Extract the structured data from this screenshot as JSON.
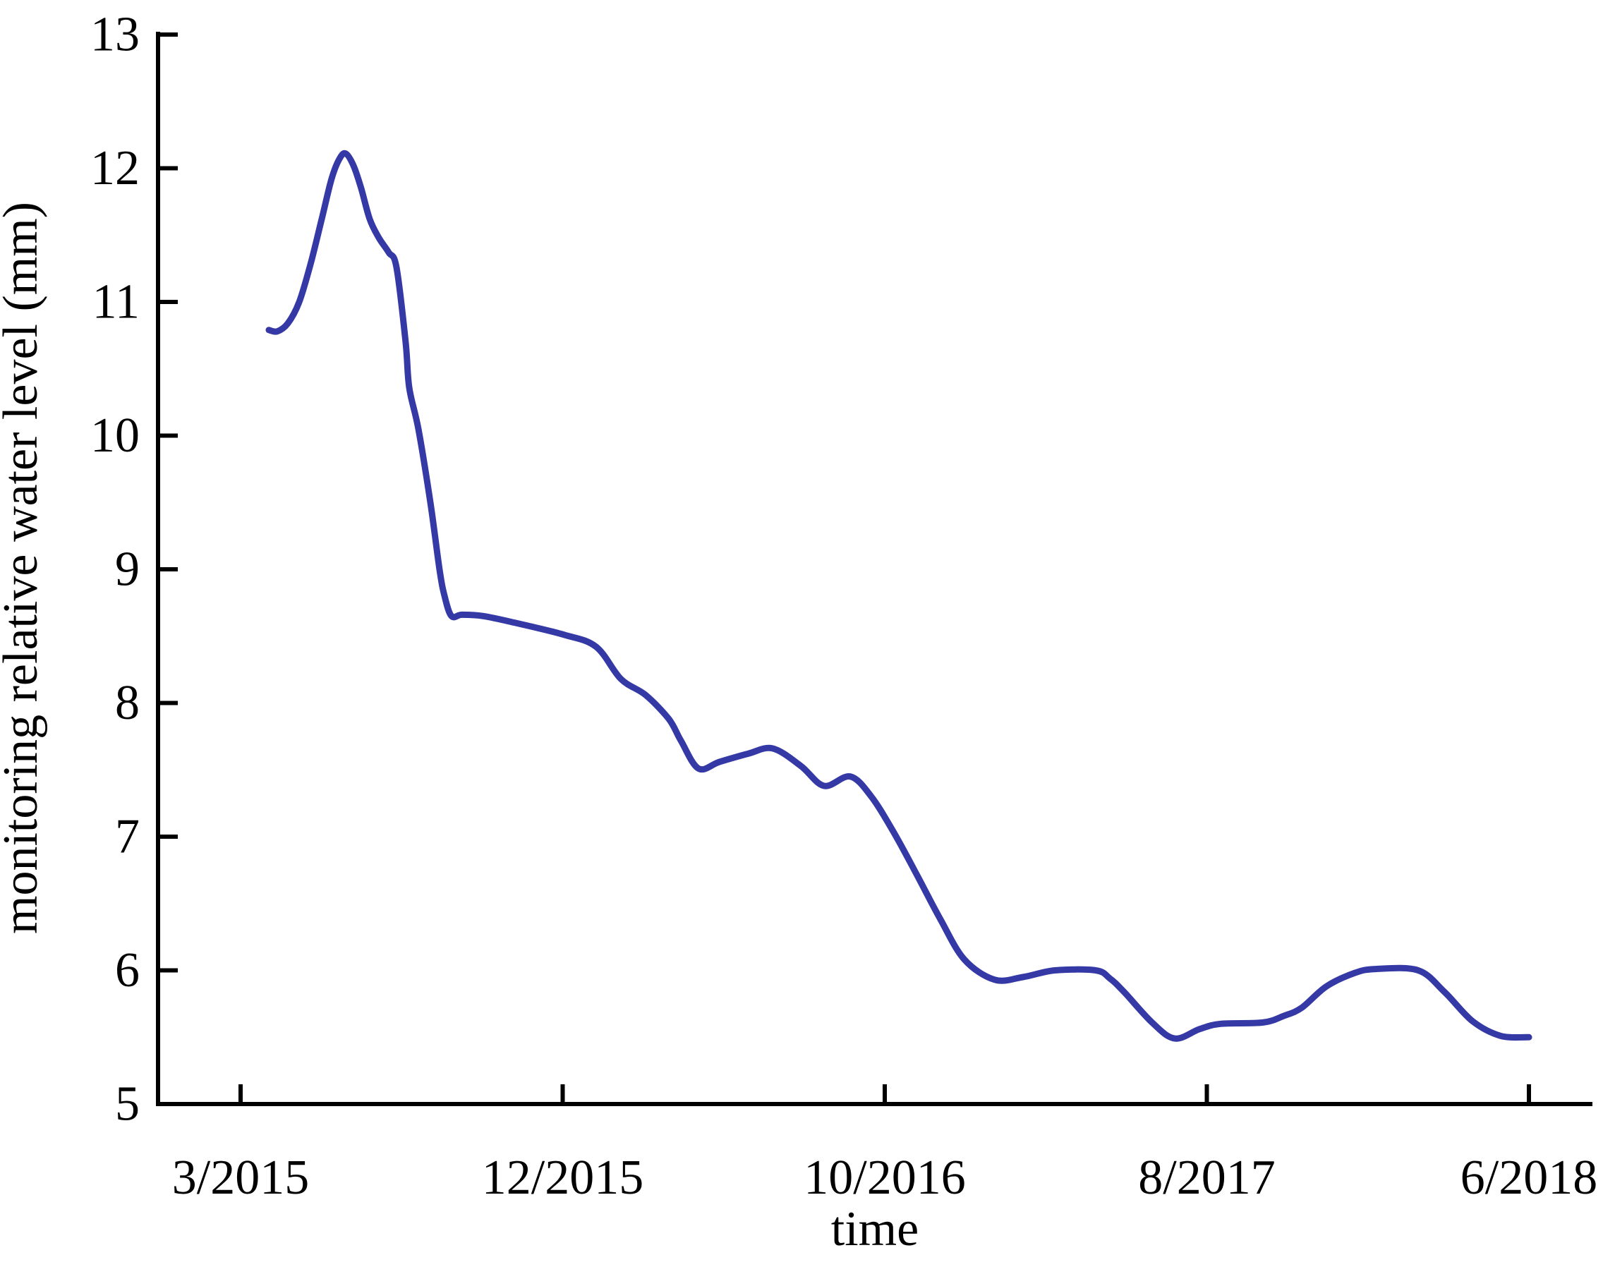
{
  "chart_data": {
    "type": "line",
    "title": "",
    "xlabel": "time",
    "ylabel": "monitoring relative water level (mm)",
    "x_tick_labels": [
      "3/2015",
      "12/2015",
      "10/2016",
      "8/2017",
      "6/2018"
    ],
    "x_tick_positions": [
      0,
      0.25,
      0.5,
      0.75,
      1
    ],
    "y_ticks": [
      13,
      12,
      11,
      10,
      9,
      8,
      7,
      6,
      5
    ],
    "ylim": [
      5,
      13
    ],
    "grid": false,
    "legend": "none",
    "line_color": "#3439a6",
    "axis_color": "#000000",
    "series": [
      {
        "name": "monitoring relative water level",
        "color": "#3439a6",
        "points": [
          [
            0.0219,
            10.79
          ],
          [
            0.0285,
            10.78
          ],
          [
            0.0367,
            10.84
          ],
          [
            0.0455,
            11.0
          ],
          [
            0.0542,
            11.28
          ],
          [
            0.063,
            11.62
          ],
          [
            0.0706,
            11.92
          ],
          [
            0.0767,
            12.07
          ],
          [
            0.0816,
            12.11
          ],
          [
            0.0876,
            12.02
          ],
          [
            0.0936,
            11.85
          ],
          [
            0.1002,
            11.62
          ],
          [
            0.1073,
            11.48
          ],
          [
            0.115,
            11.37
          ],
          [
            0.121,
            11.26
          ],
          [
            0.1281,
            10.7
          ],
          [
            0.1309,
            10.36
          ],
          [
            0.138,
            10.05
          ],
          [
            0.1473,
            9.5
          ],
          [
            0.1544,
            9.0
          ],
          [
            0.1583,
            8.8
          ],
          [
            0.1637,
            8.65
          ],
          [
            0.1719,
            8.66
          ],
          [
            0.1884,
            8.65
          ],
          [
            0.213,
            8.6
          ],
          [
            0.2513,
            8.51
          ],
          [
            0.276,
            8.42
          ],
          [
            0.2952,
            8.18
          ],
          [
            0.3143,
            8.06
          ],
          [
            0.3324,
            7.88
          ],
          [
            0.3417,
            7.72
          ],
          [
            0.3554,
            7.51
          ],
          [
            0.3718,
            7.56
          ],
          [
            0.3937,
            7.62
          ],
          [
            0.4129,
            7.66
          ],
          [
            0.4348,
            7.53
          ],
          [
            0.4529,
            7.38
          ],
          [
            0.4732,
            7.45
          ],
          [
            0.4896,
            7.3
          ],
          [
            0.5071,
            7.03
          ],
          [
            0.5252,
            6.71
          ],
          [
            0.5433,
            6.38
          ],
          [
            0.5619,
            6.08
          ],
          [
            0.5854,
            5.93
          ],
          [
            0.6073,
            5.95
          ],
          [
            0.632,
            6.0
          ],
          [
            0.6637,
            6.0
          ],
          [
            0.6747,
            5.94
          ],
          [
            0.6856,
            5.84
          ],
          [
            0.7075,
            5.61
          ],
          [
            0.7251,
            5.49
          ],
          [
            0.7442,
            5.56
          ],
          [
            0.7607,
            5.6
          ],
          [
            0.7935,
            5.61
          ],
          [
            0.8099,
            5.66
          ],
          [
            0.8236,
            5.72
          ],
          [
            0.8428,
            5.88
          ],
          [
            0.8647,
            5.98
          ],
          [
            0.8811,
            6.01
          ],
          [
            0.914,
            6.0
          ],
          [
            0.9343,
            5.84
          ],
          [
            0.9562,
            5.62
          ],
          [
            0.9781,
            5.51
          ],
          [
            1.0,
            5.5
          ]
        ]
      }
    ]
  }
}
